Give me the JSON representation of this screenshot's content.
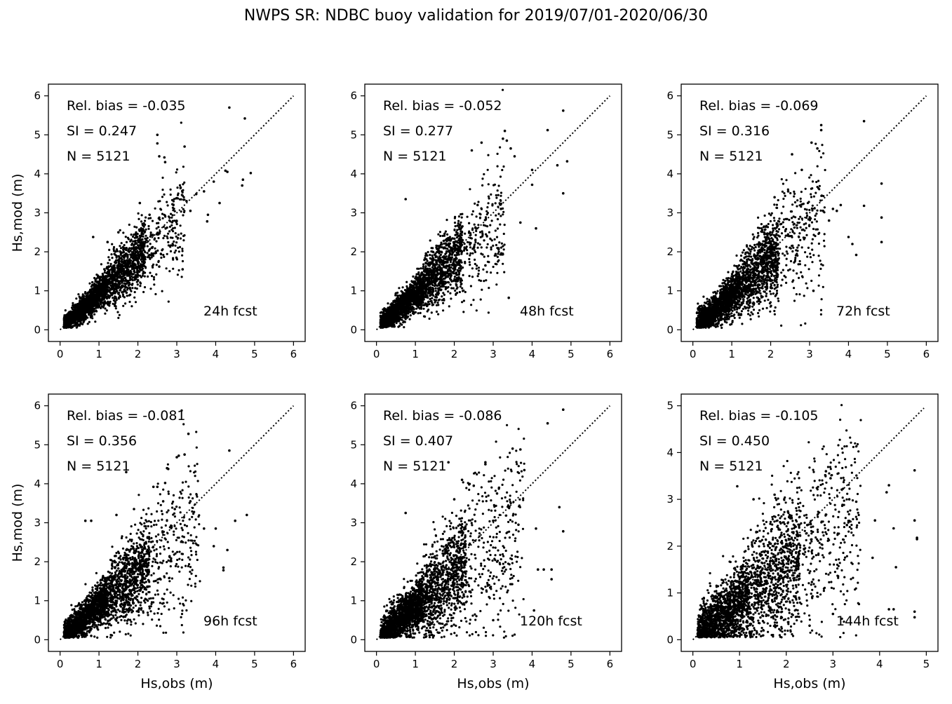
{
  "figure": {
    "title": "NWPS SR: NDBC buoy validation for 2019/07/01-2020/06/30",
    "point_color": "#000000",
    "frame_color": "#000000",
    "background": "#ffffff"
  },
  "chart_data": [
    {
      "type": "scatter",
      "panel_label": "24h fcst",
      "stats": [
        "Rel. bias = -0.035",
        "SI =  0.247",
        "N = 5121"
      ],
      "xlabel": "",
      "ylabel": "Hs,mod (m)",
      "xlim": [
        -0.3,
        6.3
      ],
      "ylim": [
        -0.3,
        6.3
      ],
      "xticks": [
        0,
        1,
        2,
        3,
        4,
        5,
        6
      ],
      "yticks": [
        0,
        1,
        2,
        3,
        4,
        5,
        6
      ],
      "reference_line": "1:1 dotted",
      "points": [
        [
          4.35,
          5.7
        ],
        [
          4.75,
          5.42
        ],
        [
          2.5,
          5.0
        ],
        [
          2.5,
          4.78
        ],
        [
          3.2,
          4.7
        ],
        [
          2.68,
          4.42
        ],
        [
          2.7,
          4.3
        ],
        [
          2.55,
          4.45
        ],
        [
          4.25,
          4.08
        ],
        [
          4.9,
          4.02
        ],
        [
          4.7,
          3.85
        ],
        [
          4.68,
          3.7
        ],
        [
          3.1,
          3.65
        ],
        [
          3.5,
          3.48
        ],
        [
          3.25,
          3.3
        ],
        [
          4.1,
          3.25
        ],
        [
          3.8,
          2.95
        ],
        [
          3.78,
          2.78
        ],
        [
          2.3,
          2.95
        ],
        [
          2.55,
          1.62
        ],
        [
          3.15,
          1.55
        ],
        [
          3.35,
          3.05
        ],
        [
          2.05,
          3.25
        ],
        [
          0.85,
          2.38
        ],
        [
          1.22,
          2.25
        ],
        [
          1.5,
          2.5
        ],
        [
          3.7,
          3.55
        ],
        [
          4.3,
          4.05
        ],
        [
          3.95,
          3.8
        ]
      ],
      "cloud": [
        {
          "n": 1500,
          "x": [
            0.1,
            1.2
          ],
          "slope": 0.93,
          "spread": 0.2
        },
        {
          "n": 900,
          "x": [
            1.2,
            2.2
          ],
          "slope": 0.93,
          "spread": 0.28
        },
        {
          "n": 220,
          "x": [
            2.2,
            3.2
          ],
          "slope": 0.92,
          "spread": 0.35
        }
      ]
    },
    {
      "type": "scatter",
      "panel_label": "48h fcst",
      "stats": [
        "Rel. bias = -0.052",
        "SI =  0.277",
        "N = 5121"
      ],
      "xlabel": "",
      "ylabel": "",
      "xlim": [
        -0.3,
        6.3
      ],
      "ylim": [
        -0.3,
        6.3
      ],
      "xticks": [
        0,
        1,
        2,
        3,
        4,
        5,
        6
      ],
      "yticks": [
        0,
        1,
        2,
        3,
        4,
        5,
        6
      ],
      "reference_line": "1:1 dotted",
      "points": [
        [
          4.8,
          5.62
        ],
        [
          4.4,
          5.12
        ],
        [
          3.3,
          5.1
        ],
        [
          3.25,
          4.9
        ],
        [
          3.35,
          4.85
        ],
        [
          2.7,
          4.8
        ],
        [
          2.45,
          4.6
        ],
        [
          3.45,
          4.65
        ],
        [
          3.55,
          4.45
        ],
        [
          4.9,
          4.32
        ],
        [
          4.65,
          4.22
        ],
        [
          4.0,
          4.1
        ],
        [
          4.0,
          3.72
        ],
        [
          4.8,
          3.5
        ],
        [
          0.75,
          3.35
        ],
        [
          2.6,
          3.2
        ],
        [
          3.7,
          2.75
        ],
        [
          4.1,
          2.6
        ],
        [
          3.4,
          0.82
        ],
        [
          2.8,
          1.65
        ],
        [
          2.5,
          2.1
        ],
        [
          3.2,
          3.1
        ]
      ],
      "cloud": [
        {
          "n": 1500,
          "x": [
            0.1,
            1.2
          ],
          "slope": 0.92,
          "spread": 0.22
        },
        {
          "n": 900,
          "x": [
            1.2,
            2.2
          ],
          "slope": 0.92,
          "spread": 0.32
        },
        {
          "n": 220,
          "x": [
            2.2,
            3.3
          ],
          "slope": 0.9,
          "spread": 0.42
        }
      ]
    },
    {
      "type": "scatter",
      "panel_label": "72h fcst",
      "stats": [
        "Rel. bias = -0.069",
        "SI =  0.316",
        "N = 5121"
      ],
      "xlabel": "",
      "ylabel": "",
      "xlim": [
        -0.3,
        6.3
      ],
      "ylim": [
        -0.3,
        6.3
      ],
      "xticks": [
        0,
        1,
        2,
        3,
        4,
        5,
        6
      ],
      "yticks": [
        0,
        1,
        2,
        3,
        4,
        5,
        6
      ],
      "reference_line": "1:1 dotted",
      "points": [
        [
          3.3,
          5.25
        ],
        [
          3.3,
          5.12
        ],
        [
          4.4,
          5.35
        ],
        [
          3.05,
          4.8
        ],
        [
          3.2,
          4.65
        ],
        [
          2.55,
          4.5
        ],
        [
          4.85,
          3.75
        ],
        [
          4.4,
          3.18
        ],
        [
          4.85,
          2.88
        ],
        [
          4.0,
          2.38
        ],
        [
          4.1,
          2.2
        ],
        [
          4.2,
          1.92
        ],
        [
          4.85,
          2.25
        ],
        [
          3.6,
          3.1
        ],
        [
          3.5,
          2.8
        ],
        [
          2.1,
          3.4
        ],
        [
          2.45,
          3.55
        ],
        [
          3.1,
          1.0
        ],
        [
          1.3,
          0.78
        ],
        [
          2.8,
          4.1
        ],
        [
          3.7,
          3.05
        ],
        [
          3.8,
          3.2
        ]
      ],
      "cloud": [
        {
          "n": 1500,
          "x": [
            0.1,
            1.2
          ],
          "slope": 0.9,
          "spread": 0.26
        },
        {
          "n": 900,
          "x": [
            1.2,
            2.2
          ],
          "slope": 0.9,
          "spread": 0.38
        },
        {
          "n": 240,
          "x": [
            2.2,
            3.4
          ],
          "slope": 0.88,
          "spread": 0.5
        }
      ]
    },
    {
      "type": "scatter",
      "panel_label": "96h fcst",
      "stats": [
        "Rel. bias = -0.081",
        "SI =  0.356",
        "N = 5121"
      ],
      "xlabel": "Hs,obs (m)",
      "ylabel": "Hs,mod (m)",
      "xlim": [
        -0.3,
        6.3
      ],
      "ylim": [
        -0.3,
        6.3
      ],
      "xticks": [
        0,
        1,
        2,
        3,
        4,
        5,
        6
      ],
      "yticks": [
        0,
        1,
        2,
        3,
        4,
        5,
        6
      ],
      "reference_line": "1:1 dotted",
      "points": [
        [
          3.3,
          5.28
        ],
        [
          4.35,
          4.85
        ],
        [
          3.2,
          4.75
        ],
        [
          3.05,
          4.72
        ],
        [
          3.0,
          4.68
        ],
        [
          2.78,
          4.38
        ],
        [
          2.75,
          4.4
        ],
        [
          2.4,
          3.92
        ],
        [
          2.5,
          3.92
        ],
        [
          2.7,
          4.02
        ],
        [
          1.7,
          4.3
        ],
        [
          1.9,
          3.35
        ],
        [
          3.35,
          3.55
        ],
        [
          0.65,
          3.05
        ],
        [
          0.8,
          3.05
        ],
        [
          1.45,
          3.2
        ],
        [
          4.8,
          3.2
        ],
        [
          4.5,
          3.05
        ],
        [
          4.3,
          2.3
        ],
        [
          4.2,
          1.85
        ],
        [
          4.2,
          1.78
        ],
        [
          3.7,
          2.85
        ],
        [
          4.0,
          2.85
        ],
        [
          3.95,
          2.4
        ],
        [
          0.8,
          0.1
        ],
        [
          0.6,
          0.1
        ],
        [
          2.65,
          3.55
        ],
        [
          2.95,
          3.35
        ]
      ],
      "cloud": [
        {
          "n": 1500,
          "x": [
            0.1,
            1.2
          ],
          "slope": 0.9,
          "spread": 0.26
        },
        {
          "n": 900,
          "x": [
            1.2,
            2.3
          ],
          "slope": 0.88,
          "spread": 0.42
        },
        {
          "n": 260,
          "x": [
            2.3,
            3.6
          ],
          "slope": 0.85,
          "spread": 0.55
        }
      ]
    },
    {
      "type": "scatter",
      "panel_label": "120h fcst",
      "stats": [
        "Rel. bias = -0.086",
        "SI =  0.407",
        "N = 5121"
      ],
      "xlabel": "Hs,obs (m)",
      "ylabel": "",
      "xlim": [
        -0.3,
        6.3
      ],
      "ylim": [
        -0.3,
        6.3
      ],
      "xticks": [
        0,
        1,
        2,
        3,
        4,
        5,
        6
      ],
      "yticks": [
        0,
        1,
        2,
        3,
        4,
        5,
        6
      ],
      "reference_line": "1:1 dotted",
      "points": [
        [
          4.4,
          5.55
        ],
        [
          4.8,
          5.9
        ],
        [
          3.5,
          4.9
        ],
        [
          3.7,
          4.88
        ],
        [
          2.8,
          4.55
        ],
        [
          2.8,
          4.5
        ],
        [
          3.8,
          4.35
        ],
        [
          1.85,
          4.55
        ],
        [
          2.2,
          4.1
        ],
        [
          2.5,
          3.95
        ],
        [
          3.1,
          3.75
        ],
        [
          3.15,
          3.9
        ],
        [
          4.7,
          3.4
        ],
        [
          4.8,
          2.78
        ],
        [
          4.5,
          1.8
        ],
        [
          4.5,
          1.55
        ],
        [
          4.15,
          1.8
        ],
        [
          4.3,
          1.8
        ],
        [
          4.05,
          0.75
        ],
        [
          0.75,
          3.25
        ],
        [
          3.0,
          0.5
        ],
        [
          2.0,
          3.6
        ],
        [
          3.65,
          2.95
        ],
        [
          4.1,
          2.85
        ],
        [
          3.0,
          3.05
        ]
      ],
      "cloud": [
        {
          "n": 1500,
          "x": [
            0.1,
            1.2
          ],
          "slope": 0.88,
          "spread": 0.32
        },
        {
          "n": 900,
          "x": [
            1.2,
            2.3
          ],
          "slope": 0.86,
          "spread": 0.48
        },
        {
          "n": 300,
          "x": [
            2.3,
            3.8
          ],
          "slope": 0.82,
          "spread": 0.65
        }
      ]
    },
    {
      "type": "scatter",
      "panel_label": "144h fcst",
      "stats": [
        "Rel. bias = -0.105",
        "SI =  0.450",
        "N = 5121"
      ],
      "xlabel": "Hs,obs (m)",
      "ylabel": "",
      "xlim": [
        -0.25,
        5.25
      ],
      "ylim": [
        -0.25,
        5.25
      ],
      "xticks": [
        0,
        1,
        2,
        3,
        4,
        5
      ],
      "yticks": [
        0,
        1,
        2,
        3,
        4,
        5
      ],
      "reference_line": "1:1 dotted",
      "points": [
        [
          4.75,
          3.62
        ],
        [
          4.2,
          3.3
        ],
        [
          4.15,
          3.15
        ],
        [
          2.85,
          3.6
        ],
        [
          3.35,
          3.0
        ],
        [
          3.5,
          2.95
        ],
        [
          2.95,
          3.45
        ],
        [
          3.9,
          2.55
        ],
        [
          4.3,
          2.38
        ],
        [
          4.8,
          2.15
        ],
        [
          4.8,
          2.18
        ],
        [
          4.75,
          2.55
        ],
        [
          3.85,
          1.75
        ],
        [
          4.35,
          1.55
        ],
        [
          4.75,
          0.6
        ],
        [
          4.75,
          0.48
        ],
        [
          4.2,
          0.65
        ],
        [
          4.3,
          0.65
        ],
        [
          3.0,
          0.55
        ],
        [
          0.95,
          3.28
        ],
        [
          1.3,
          3.0
        ],
        [
          1.75,
          3.1
        ],
        [
          3.3,
          2.45
        ],
        [
          2.45,
          2.45
        ],
        [
          2.5,
          0.3
        ]
      ],
      "cloud": [
        {
          "n": 1500,
          "x": [
            0.1,
            1.2
          ],
          "slope": 0.85,
          "spread": 0.4
        },
        {
          "n": 900,
          "x": [
            1.2,
            2.3
          ],
          "slope": 0.82,
          "spread": 0.55
        },
        {
          "n": 320,
          "x": [
            2.3,
            3.6
          ],
          "slope": 0.8,
          "spread": 0.65
        }
      ]
    }
  ]
}
